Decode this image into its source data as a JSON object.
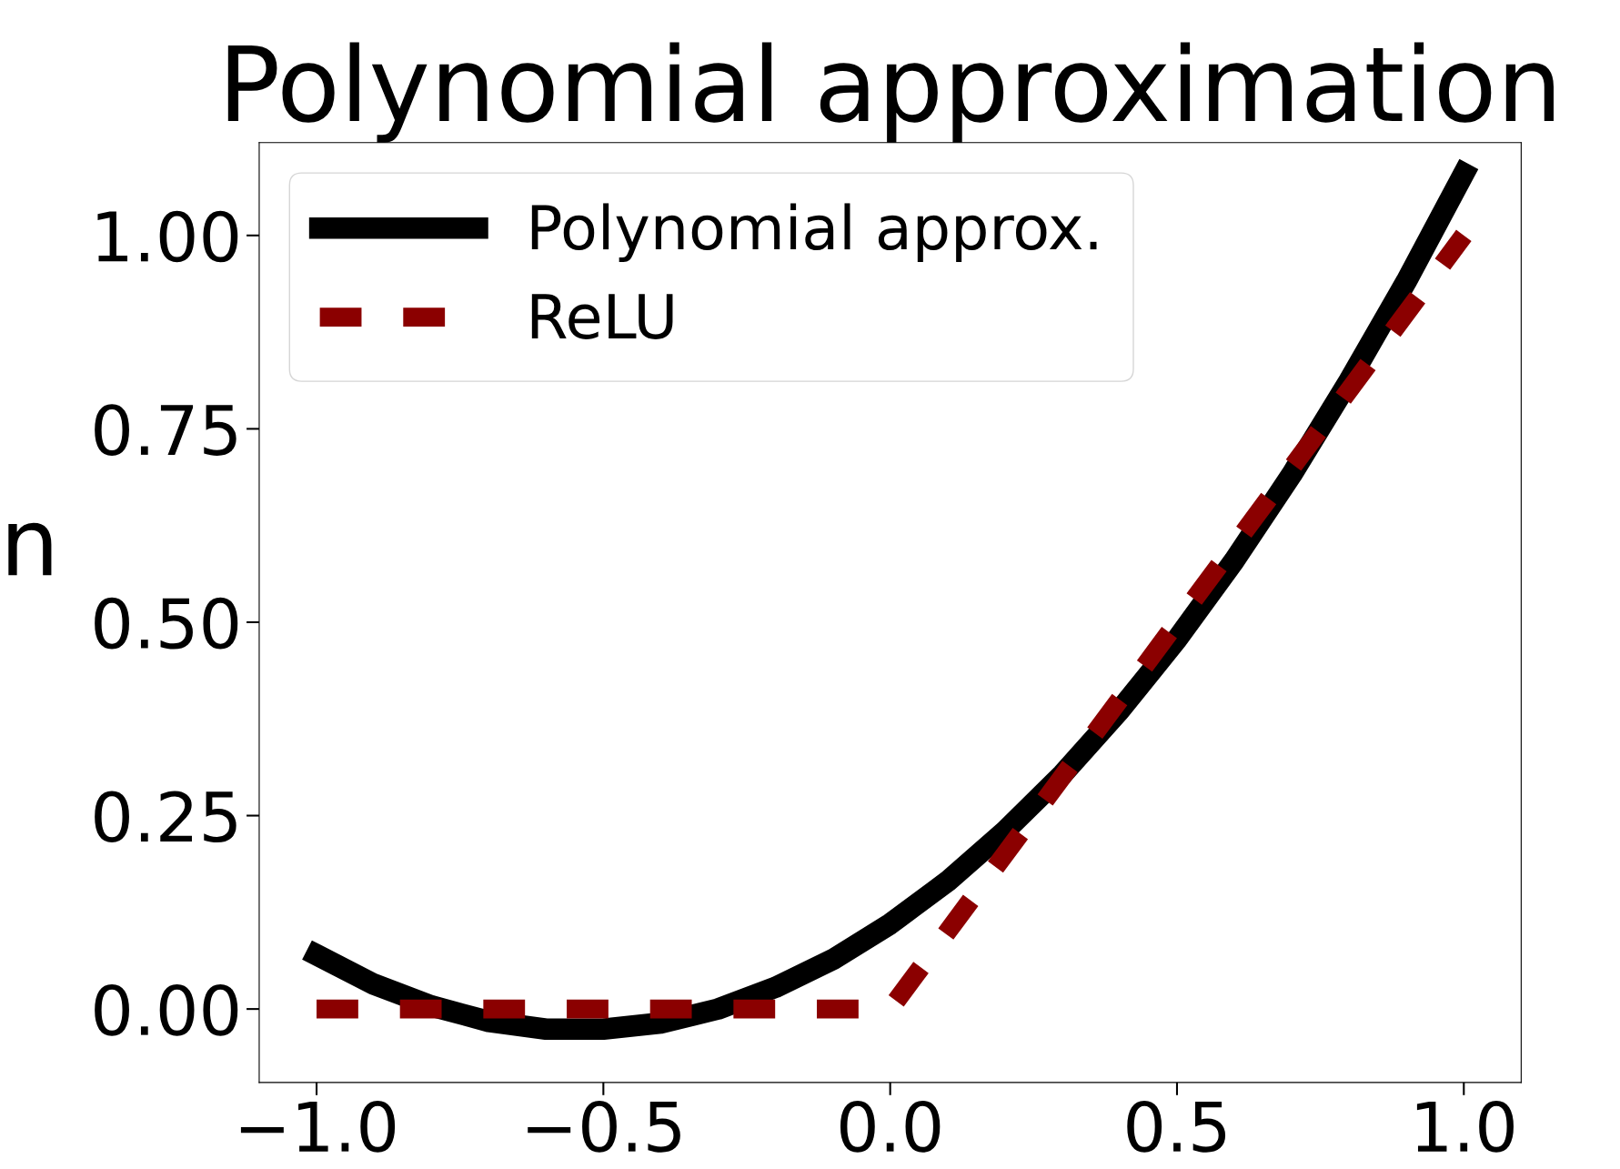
{
  "chart_data": {
    "type": "line",
    "title": "Polynomial approximation",
    "x": [
      -1.0,
      -0.9,
      -0.8,
      -0.7,
      -0.6,
      -0.5,
      -0.4,
      -0.3,
      -0.2,
      -0.1,
      0.0,
      0.1,
      0.2,
      0.3,
      0.4,
      0.5,
      0.6,
      0.7,
      0.8,
      0.9,
      1.0
    ],
    "series": [
      {
        "name": "Polynomial approx.",
        "color": "#000000",
        "line_style": "solid",
        "values": [
          0.07,
          0.032,
          0.004,
          -0.016,
          -0.026,
          -0.026,
          -0.018,
          0.0,
          0.028,
          0.064,
          0.11,
          0.165,
          0.23,
          0.303,
          0.386,
          0.478,
          0.58,
          0.691,
          0.812,
          0.941,
          1.08
        ]
      },
      {
        "name": "ReLU",
        "color": "#8b0000",
        "line_style": "dashed",
        "x": [
          -1.0,
          0.0,
          1.0
        ],
        "values": [
          0.0,
          0.0,
          1.0
        ]
      }
    ],
    "xlim": [
      -1.1,
      1.1
    ],
    "ylim": [
      -0.095,
      1.12
    ],
    "xticks": [
      {
        "value": -1.0,
        "label": "−1.0"
      },
      {
        "value": -0.5,
        "label": "−0.5"
      },
      {
        "value": 0.0,
        "label": "0.0"
      },
      {
        "value": 0.5,
        "label": "0.5"
      },
      {
        "value": 1.0,
        "label": "1.0"
      }
    ],
    "yticks": [
      {
        "value": 0.0,
        "label": "0.00"
      },
      {
        "value": 0.25,
        "label": "0.25"
      },
      {
        "value": 0.5,
        "label": "0.50"
      },
      {
        "value": 0.75,
        "label": "0.75"
      },
      {
        "value": 1.0,
        "label": "1.00"
      }
    ],
    "annotations": [
      "n"
    ],
    "legend": "top left",
    "grid": false,
    "marker": "none"
  }
}
